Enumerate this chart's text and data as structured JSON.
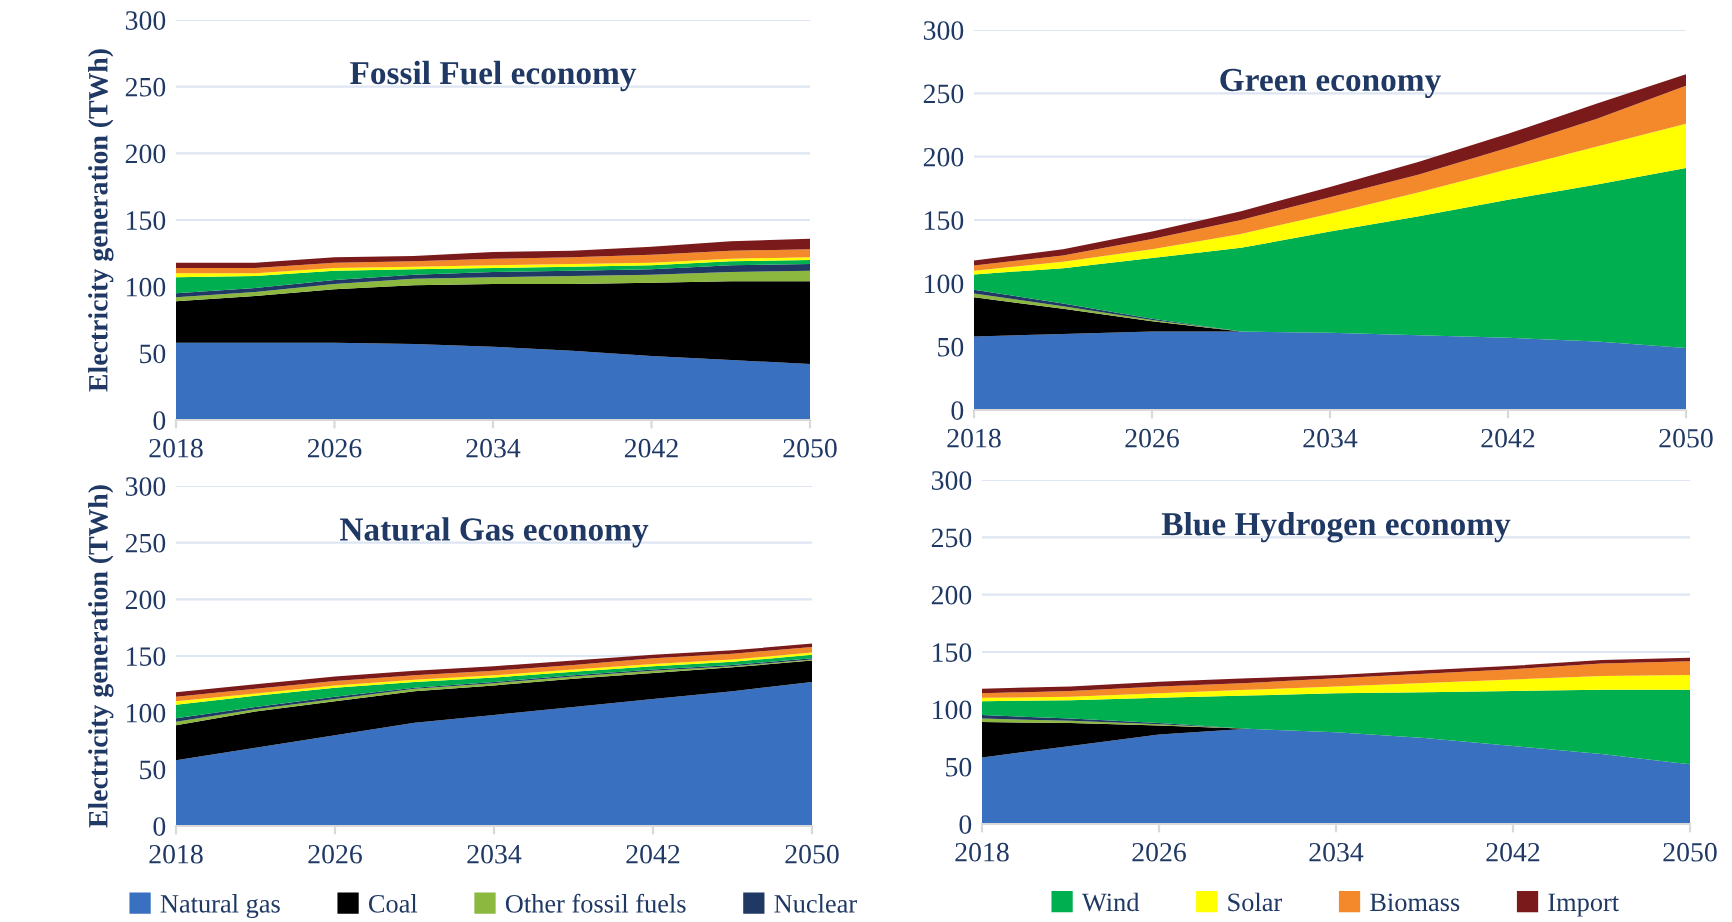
{
  "chart_data": [
    {
      "type": "area",
      "stacked": true,
      "title": "Fossil Fuel economy",
      "ylabel": "Electricity generation (TWh)",
      "x": [
        2018,
        2022,
        2026,
        2030,
        2034,
        2038,
        2042,
        2046,
        2050
      ],
      "xlim": [
        2018,
        2050
      ],
      "xticks": [
        2018,
        2026,
        2034,
        2042,
        2050
      ],
      "ylim": [
        0,
        300
      ],
      "yticks": [
        0,
        50,
        100,
        150,
        200,
        250,
        300
      ],
      "grid": "y",
      "legend": false,
      "series": [
        {
          "color": "#3a70c0",
          "values": [
            58,
            58,
            58,
            57,
            55,
            52,
            48,
            45,
            42
          ]
        },
        {
          "color": "#000000",
          "values": [
            31,
            35,
            40,
            44,
            47,
            50,
            55,
            59,
            62
          ]
        },
        {
          "color": "#8db83f",
          "values": [
            3,
            3,
            4,
            5,
            5,
            6,
            6,
            7,
            8
          ]
        },
        {
          "color": "#1f3864",
          "values": [
            3,
            3,
            3,
            3,
            4,
            4,
            4,
            5,
            5
          ]
        },
        {
          "color": "#00b050",
          "values": [
            12,
            9,
            7,
            4,
            3,
            3,
            3,
            3,
            3
          ]
        },
        {
          "color": "#ffff00",
          "values": [
            3,
            2,
            2,
            2,
            2,
            2,
            2,
            2,
            2
          ]
        },
        {
          "color": "#f4892b",
          "values": [
            4,
            4,
            4,
            4,
            5,
            5,
            6,
            6,
            6
          ]
        },
        {
          "color": "#7b1a1a",
          "values": [
            4,
            4,
            4,
            4,
            5,
            5,
            6,
            7,
            8
          ]
        }
      ]
    },
    {
      "type": "area",
      "stacked": true,
      "title": "Green economy",
      "x": [
        2018,
        2022,
        2026,
        2030,
        2034,
        2038,
        2042,
        2046,
        2050
      ],
      "xlim": [
        2018,
        2050
      ],
      "xticks": [
        2018,
        2026,
        2034,
        2042,
        2050
      ],
      "ylim": [
        0,
        300
      ],
      "yticks": [
        0,
        50,
        100,
        150,
        200,
        250,
        300
      ],
      "grid": "y",
      "legend": false,
      "series": [
        {
          "color": "#3a70c0",
          "values": [
            58,
            60,
            62,
            62,
            61,
            59,
            57,
            54,
            49
          ]
        },
        {
          "color": "#000000",
          "values": [
            31,
            20,
            8,
            0,
            0,
            0,
            0,
            0,
            0
          ]
        },
        {
          "color": "#8db83f",
          "values": [
            3,
            2,
            1,
            0,
            0,
            0,
            0,
            0,
            0
          ]
        },
        {
          "color": "#1f3864",
          "values": [
            3,
            2,
            1,
            0,
            0,
            0,
            0,
            0,
            0
          ]
        },
        {
          "color": "#00b050",
          "values": [
            12,
            28,
            48,
            66,
            80,
            94,
            109,
            124,
            142
          ]
        },
        {
          "color": "#ffff00",
          "values": [
            3,
            5,
            7,
            11,
            14,
            19,
            24,
            30,
            35
          ]
        },
        {
          "color": "#f4892b",
          "values": [
            4,
            5,
            8,
            11,
            13,
            14,
            17,
            22,
            30
          ]
        },
        {
          "color": "#7b1a1a",
          "values": [
            4,
            5,
            6,
            7,
            8,
            10,
            11,
            12,
            9
          ]
        }
      ]
    },
    {
      "type": "area",
      "stacked": true,
      "title": "Natural Gas economy",
      "ylabel": "Electricity generation (TWh)",
      "x": [
        2018,
        2022,
        2026,
        2030,
        2034,
        2038,
        2042,
        2046,
        2050
      ],
      "xlim": [
        2018,
        2050
      ],
      "xticks": [
        2018,
        2026,
        2034,
        2042,
        2050
      ],
      "ylim": [
        0,
        300
      ],
      "yticks": [
        0,
        50,
        100,
        150,
        200,
        250,
        300
      ],
      "grid": "y",
      "legend": "bottom",
      "series": [
        {
          "name": "Natural gas",
          "color": "#3a70c0",
          "values": [
            58,
            69,
            80,
            91,
            98,
            105,
            112,
            119,
            127
          ]
        },
        {
          "name": "Coal",
          "color": "#000000",
          "values": [
            31,
            32,
            30,
            28,
            26,
            25,
            23,
            21,
            19
          ]
        },
        {
          "name": "Other fossil fuels",
          "color": "#8db83f",
          "values": [
            3,
            2,
            2,
            2,
            2,
            2,
            2,
            1,
            1
          ]
        },
        {
          "name": "Nuclear",
          "color": "#1f3864",
          "values": [
            3,
            2,
            2,
            1,
            1,
            1,
            1,
            1,
            1
          ]
        },
        {
          "color": "#00b050",
          "values": [
            12,
            10,
            8,
            5,
            4,
            3,
            3,
            3,
            3
          ]
        },
        {
          "color": "#ffff00",
          "values": [
            3,
            2,
            2,
            2,
            2,
            2,
            2,
            2,
            2
          ]
        },
        {
          "color": "#f4892b",
          "values": [
            4,
            4,
            4,
            4,
            4,
            4,
            5,
            5,
            5
          ]
        },
        {
          "color": "#7b1a1a",
          "values": [
            4,
            4,
            4,
            4,
            4,
            4,
            3,
            3,
            3
          ]
        }
      ]
    },
    {
      "type": "area",
      "stacked": true,
      "title": "Blue Hydrogen economy",
      "x": [
        2018,
        2022,
        2026,
        2030,
        2034,
        2038,
        2042,
        2046,
        2050
      ],
      "xlim": [
        2018,
        2050
      ],
      "xticks": [
        2018,
        2026,
        2034,
        2042,
        2050
      ],
      "ylim": [
        0,
        300
      ],
      "yticks": [
        0,
        50,
        100,
        150,
        200,
        250,
        300
      ],
      "grid": "y",
      "legend": "bottom",
      "series": [
        {
          "color": "#3a70c0",
          "values": [
            58,
            68,
            78,
            83,
            80,
            75,
            68,
            61,
            52
          ]
        },
        {
          "color": "#000000",
          "values": [
            31,
            20,
            8,
            0,
            0,
            0,
            0,
            0,
            0
          ]
        },
        {
          "color": "#8db83f",
          "values": [
            3,
            2,
            1,
            0,
            0,
            0,
            0,
            0,
            0
          ]
        },
        {
          "color": "#1f3864",
          "values": [
            3,
            2,
            1,
            0,
            0,
            0,
            0,
            0,
            0
          ]
        },
        {
          "name": "Wind",
          "color": "#00b050",
          "values": [
            12,
            16,
            22,
            29,
            34,
            40,
            48,
            56,
            65
          ]
        },
        {
          "name": "Solar",
          "color": "#ffff00",
          "values": [
            3,
            3,
            4,
            5,
            6,
            8,
            10,
            12,
            13
          ]
        },
        {
          "name": "Biomass",
          "color": "#f4892b",
          "values": [
            4,
            5,
            6,
            6,
            7,
            8,
            9,
            11,
            12
          ]
        },
        {
          "name": "Import",
          "color": "#7b1a1a",
          "values": [
            4,
            4,
            4,
            4,
            3,
            3,
            3,
            3,
            3
          ]
        }
      ]
    }
  ]
}
